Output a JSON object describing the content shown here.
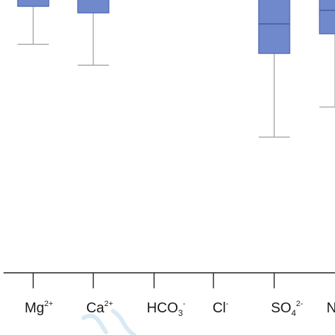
{
  "chart_data": {
    "type": "box",
    "x_axis": {
      "categories": [
        {
          "base": "Mg",
          "sup": "2+",
          "sub": ""
        },
        {
          "base": "Ca",
          "sup": "2+",
          "sub": ""
        },
        {
          "base": "HCO",
          "sup": "-",
          "sub": "3"
        },
        {
          "base": "Cl",
          "sup": "-",
          "sub": ""
        },
        {
          "base": "SO",
          "sup": "2-",
          "sub": "4"
        },
        {
          "base": "N",
          "sup": "",
          "sub": ""
        }
      ]
    },
    "y_axis": {
      "visible_range": [
        0,
        100
      ],
      "ticks_visible": false
    },
    "series": [
      {
        "category_index": 0,
        "whisker_low": 85.5,
        "q1": 100,
        "median": 100,
        "q3": 100,
        "whisker_high": 100
      },
      {
        "category_index": 1,
        "whisker_low": 77.5,
        "q1": 97.5,
        "median": 100,
        "q3": 100,
        "whisker_high": 100
      },
      {
        "category_index": 2,
        "visible": false
      },
      {
        "category_index": 3,
        "visible": false
      },
      {
        "category_index": 4,
        "whisker_low": 50,
        "q1": 82,
        "median": 93.3,
        "q3": 100,
        "whisker_high": 100
      },
      {
        "category_index": 5,
        "whisker_low": 61.5,
        "q1": 89.5,
        "median": 98.5,
        "q3": 100,
        "whisker_high": 100
      }
    ],
    "colors": {
      "box_fill": "#7089cc",
      "box_stroke": "#4a63ad",
      "whisker": "#9a9a9a",
      "axis": "#222222"
    }
  },
  "watermark": {
    "present": true,
    "color": "#cfe5f4"
  }
}
